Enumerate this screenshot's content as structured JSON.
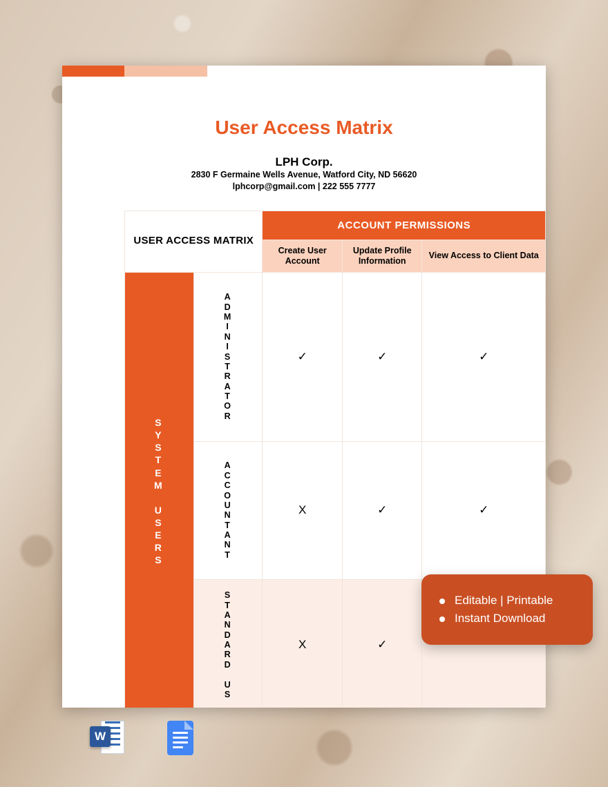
{
  "colors": {
    "accent": "#e85a24",
    "accent_light": "#f6c0a4",
    "accent_light2": "#fbd2bd",
    "row_tint": "#fceee6",
    "badge_bg": "#c94f23"
  },
  "header": {
    "title": "User Access Matrix",
    "company": "LPH Corp.",
    "address": "2830 F Germaine Wells Avenue, Watford City, ND 56620",
    "contact": "lphcorp@gmail.com | 222 555 7777"
  },
  "table": {
    "corner_label": "USER ACCESS MATRIX",
    "permissions_header": "ACCOUNT PERMISSIONS",
    "side_header": "SYSTEM USERS",
    "columns": [
      "Create User Account",
      "Update Profile Information",
      "View Access to Client Data"
    ],
    "rows": [
      {
        "role": "ADMINISTRATOR",
        "values": [
          "✓",
          "✓",
          "✓"
        ]
      },
      {
        "role": "ACCOUNTANT",
        "values": [
          "X",
          "✓",
          "✓"
        ]
      },
      {
        "role": "STANDARD US",
        "values": [
          "X",
          "✓",
          ""
        ]
      }
    ],
    "check_glyph": "✓",
    "cross_glyph": "X"
  },
  "badge": {
    "items": [
      "Editable | Printable",
      "Instant Download"
    ]
  },
  "apps": {
    "word_letter": "W"
  }
}
